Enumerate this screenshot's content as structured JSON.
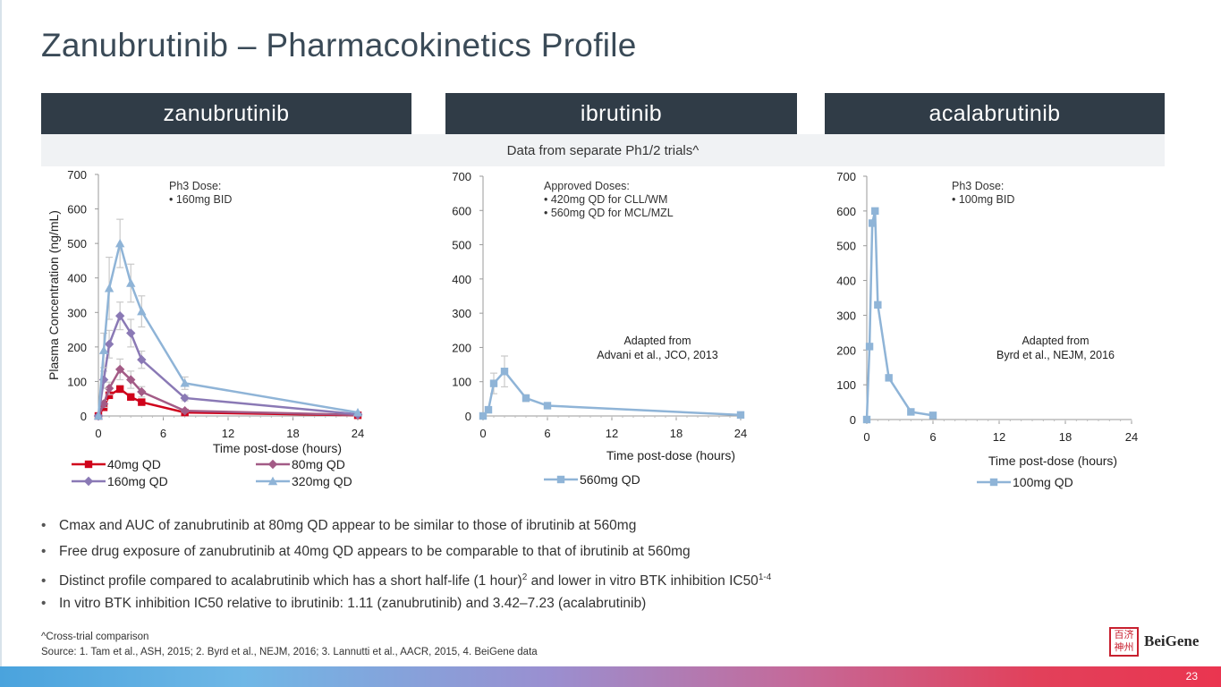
{
  "title": "Zanubrutinib – Pharmacokinetics Profile",
  "headers": [
    "zanubrutinib",
    "ibrutinib",
    "acalabrutinib"
  ],
  "subheader": "Data from separate Ph1/2 trials^",
  "chart_data": [
    {
      "type": "line",
      "ylabel": "Plasma Concentration (ng/mL)",
      "xlabel": "Time post-dose (hours)",
      "ylim": [
        0,
        700
      ],
      "xlim": [
        0,
        24
      ],
      "yticks": [
        "0",
        "100",
        "200",
        "300",
        "400",
        "500",
        "600",
        "700"
      ],
      "xticks": [
        "0",
        "6",
        "12",
        "18",
        "24"
      ],
      "annotation": {
        "heading": "Ph3 Dose:",
        "items": [
          "160mg BID"
        ]
      },
      "legend": [
        "40mg QD",
        "80mg QD",
        "160mg QD",
        "320mg QD"
      ],
      "series": [
        {
          "name": "40mg QD",
          "color": "#d0021b",
          "marker": "square",
          "x": [
            0,
            0.5,
            1,
            2,
            3,
            4,
            8,
            24
          ],
          "y": [
            0,
            25,
            60,
            78,
            55,
            40,
            10,
            2
          ],
          "err": [
            0,
            5,
            8,
            10,
            8,
            6,
            3,
            0
          ]
        },
        {
          "name": "80mg QD",
          "color": "#a35b86",
          "marker": "diamond",
          "x": [
            0,
            0.5,
            1,
            2,
            3,
            4,
            8,
            24
          ],
          "y": [
            0,
            35,
            80,
            135,
            105,
            70,
            15,
            3
          ],
          "err": [
            0,
            10,
            18,
            30,
            25,
            15,
            4,
            0
          ]
        },
        {
          "name": "160mg QD",
          "color": "#8a79b5",
          "marker": "diamond",
          "x": [
            0,
            0.5,
            1,
            2,
            3,
            4,
            8,
            24
          ],
          "y": [
            0,
            105,
            208,
            290,
            240,
            163,
            52,
            5
          ],
          "err": [
            0,
            25,
            40,
            40,
            40,
            25,
            8,
            0
          ]
        },
        {
          "name": "320mg QD",
          "color": "#8fb4d7",
          "marker": "triangle",
          "x": [
            0,
            0.5,
            1,
            2,
            3,
            4,
            8,
            24
          ],
          "y": [
            0,
            190,
            370,
            500,
            385,
            303,
            95,
            10
          ],
          "err": [
            0,
            50,
            90,
            70,
            55,
            45,
            18,
            0
          ]
        }
      ]
    },
    {
      "type": "line",
      "xlabel": "Time post-dose (hours)",
      "ylim": [
        0,
        700
      ],
      "xlim": [
        0,
        24
      ],
      "yticks": [
        "0",
        "100",
        "200",
        "300",
        "400",
        "500",
        "600",
        "700"
      ],
      "xticks": [
        "0",
        "6",
        "12",
        "18",
        "24"
      ],
      "annotation": {
        "heading": "Approved Doses:",
        "items": [
          "420mg QD for CLL/WM",
          "560mg QD for MCL/MZL"
        ]
      },
      "source": [
        "Adapted from",
        "Advani et al., JCO, 2013"
      ],
      "legend": [
        "560mg QD"
      ],
      "series": [
        {
          "name": "560mg QD",
          "color": "#8fb4d7",
          "marker": "square",
          "x": [
            0,
            0.5,
            1,
            2,
            4,
            6,
            24
          ],
          "y": [
            0,
            18,
            95,
            130,
            52,
            30,
            3
          ],
          "err": [
            0,
            8,
            30,
            45,
            10,
            5,
            0
          ]
        }
      ]
    },
    {
      "type": "line",
      "xlabel": "Time post-dose (hours)",
      "ylim": [
        0,
        700
      ],
      "xlim": [
        0,
        24
      ],
      "yticks": [
        "0",
        "100",
        "200",
        "300",
        "400",
        "500",
        "600",
        "700"
      ],
      "xticks": [
        "0",
        "6",
        "12",
        "18",
        "24"
      ],
      "annotation": {
        "heading": "Ph3 Dose:",
        "items": [
          "100mg BID"
        ]
      },
      "source": [
        "Adapted from",
        "Byrd et al., NEJM, 2016"
      ],
      "legend": [
        "100mg QD"
      ],
      "series": [
        {
          "name": "100mg QD",
          "color": "#8fb4d7",
          "marker": "square",
          "x": [
            0,
            0.25,
            0.5,
            0.75,
            1,
            2,
            4,
            6
          ],
          "y": [
            0,
            210,
            565,
            600,
            330,
            120,
            22,
            12
          ],
          "err": [
            0,
            0,
            0,
            0,
            0,
            0,
            0,
            0
          ]
        }
      ]
    }
  ],
  "bullets": [
    {
      "text": "Cmax and AUC of zanubrutinib at 80mg QD appear to be similar to those of ibrutinib at 560mg"
    },
    {
      "text": "Free drug exposure of zanubrutinib at 40mg QD appears to be comparable to that of ibrutinib at 560mg"
    },
    {
      "text": "Distinct profile compared to acalabrutinib which has a short half-life (1 hour)",
      "sup1": "2",
      "text2": " and lower in vitro BTK inhibition IC50",
      "sup2": "1-4"
    },
    {
      "text": "In vitro BTK inhibition IC50 relative to ibrutinib: 1.11 (zanubrutinib) and 3.42–7.23 (acalabrutinib)"
    }
  ],
  "bullet_symbol": "•",
  "footnote": "^Cross-trial comparison",
  "source": "Source: 1. Tam et al., ASH, 2015; 2. Byrd et al., NEJM, 2016; 3. Lannutti et al., AACR, 2015, 4. BeiGene data",
  "logo": {
    "text": "BeiGene",
    "seal": "百济神州"
  },
  "page_number": "23"
}
